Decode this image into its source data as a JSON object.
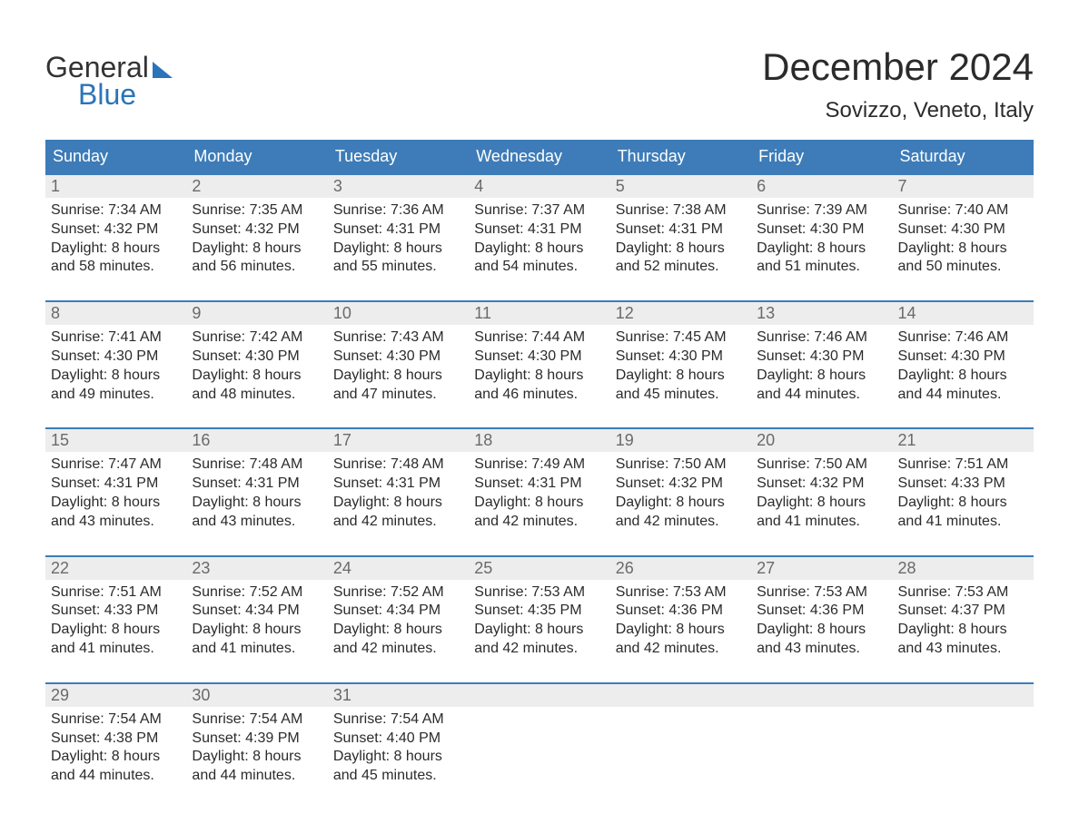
{
  "colors": {
    "brand_blue": "#3d7cb8",
    "logo_blue": "#2a74ba",
    "text_dark": "#2b2b2b",
    "daynum_gray": "#6a6a6a",
    "daynum_bg": "#ededed",
    "background": "#ffffff"
  },
  "typography": {
    "title_fontsize": 42,
    "subtitle_fontsize": 24,
    "dow_fontsize": 18,
    "daynum_fontsize": 18,
    "body_fontsize": 16,
    "logo_fontsize": 32,
    "font_family": "Arial"
  },
  "logo": {
    "top": "General",
    "bottom": "Blue"
  },
  "title": "December 2024",
  "subtitle": "Sovizzo, Veneto, Italy",
  "dow": [
    "Sunday",
    "Monday",
    "Tuesday",
    "Wednesday",
    "Thursday",
    "Friday",
    "Saturday"
  ],
  "calendar": {
    "type": "table",
    "columns": 7,
    "rows": 5,
    "row_separator_color": "#3d7cb8",
    "row_separator_width": 2
  },
  "weeks": [
    [
      {
        "n": "1",
        "sunrise": "Sunrise: 7:34 AM",
        "sunset": "Sunset: 4:32 PM",
        "d1": "Daylight: 8 hours",
        "d2": "and 58 minutes."
      },
      {
        "n": "2",
        "sunrise": "Sunrise: 7:35 AM",
        "sunset": "Sunset: 4:32 PM",
        "d1": "Daylight: 8 hours",
        "d2": "and 56 minutes."
      },
      {
        "n": "3",
        "sunrise": "Sunrise: 7:36 AM",
        "sunset": "Sunset: 4:31 PM",
        "d1": "Daylight: 8 hours",
        "d2": "and 55 minutes."
      },
      {
        "n": "4",
        "sunrise": "Sunrise: 7:37 AM",
        "sunset": "Sunset: 4:31 PM",
        "d1": "Daylight: 8 hours",
        "d2": "and 54 minutes."
      },
      {
        "n": "5",
        "sunrise": "Sunrise: 7:38 AM",
        "sunset": "Sunset: 4:31 PM",
        "d1": "Daylight: 8 hours",
        "d2": "and 52 minutes."
      },
      {
        "n": "6",
        "sunrise": "Sunrise: 7:39 AM",
        "sunset": "Sunset: 4:30 PM",
        "d1": "Daylight: 8 hours",
        "d2": "and 51 minutes."
      },
      {
        "n": "7",
        "sunrise": "Sunrise: 7:40 AM",
        "sunset": "Sunset: 4:30 PM",
        "d1": "Daylight: 8 hours",
        "d2": "and 50 minutes."
      }
    ],
    [
      {
        "n": "8",
        "sunrise": "Sunrise: 7:41 AM",
        "sunset": "Sunset: 4:30 PM",
        "d1": "Daylight: 8 hours",
        "d2": "and 49 minutes."
      },
      {
        "n": "9",
        "sunrise": "Sunrise: 7:42 AM",
        "sunset": "Sunset: 4:30 PM",
        "d1": "Daylight: 8 hours",
        "d2": "and 48 minutes."
      },
      {
        "n": "10",
        "sunrise": "Sunrise: 7:43 AM",
        "sunset": "Sunset: 4:30 PM",
        "d1": "Daylight: 8 hours",
        "d2": "and 47 minutes."
      },
      {
        "n": "11",
        "sunrise": "Sunrise: 7:44 AM",
        "sunset": "Sunset: 4:30 PM",
        "d1": "Daylight: 8 hours",
        "d2": "and 46 minutes."
      },
      {
        "n": "12",
        "sunrise": "Sunrise: 7:45 AM",
        "sunset": "Sunset: 4:30 PM",
        "d1": "Daylight: 8 hours",
        "d2": "and 45 minutes."
      },
      {
        "n": "13",
        "sunrise": "Sunrise: 7:46 AM",
        "sunset": "Sunset: 4:30 PM",
        "d1": "Daylight: 8 hours",
        "d2": "and 44 minutes."
      },
      {
        "n": "14",
        "sunrise": "Sunrise: 7:46 AM",
        "sunset": "Sunset: 4:30 PM",
        "d1": "Daylight: 8 hours",
        "d2": "and 44 minutes."
      }
    ],
    [
      {
        "n": "15",
        "sunrise": "Sunrise: 7:47 AM",
        "sunset": "Sunset: 4:31 PM",
        "d1": "Daylight: 8 hours",
        "d2": "and 43 minutes."
      },
      {
        "n": "16",
        "sunrise": "Sunrise: 7:48 AM",
        "sunset": "Sunset: 4:31 PM",
        "d1": "Daylight: 8 hours",
        "d2": "and 43 minutes."
      },
      {
        "n": "17",
        "sunrise": "Sunrise: 7:48 AM",
        "sunset": "Sunset: 4:31 PM",
        "d1": "Daylight: 8 hours",
        "d2": "and 42 minutes."
      },
      {
        "n": "18",
        "sunrise": "Sunrise: 7:49 AM",
        "sunset": "Sunset: 4:31 PM",
        "d1": "Daylight: 8 hours",
        "d2": "and 42 minutes."
      },
      {
        "n": "19",
        "sunrise": "Sunrise: 7:50 AM",
        "sunset": "Sunset: 4:32 PM",
        "d1": "Daylight: 8 hours",
        "d2": "and 42 minutes."
      },
      {
        "n": "20",
        "sunrise": "Sunrise: 7:50 AM",
        "sunset": "Sunset: 4:32 PM",
        "d1": "Daylight: 8 hours",
        "d2": "and 41 minutes."
      },
      {
        "n": "21",
        "sunrise": "Sunrise: 7:51 AM",
        "sunset": "Sunset: 4:33 PM",
        "d1": "Daylight: 8 hours",
        "d2": "and 41 minutes."
      }
    ],
    [
      {
        "n": "22",
        "sunrise": "Sunrise: 7:51 AM",
        "sunset": "Sunset: 4:33 PM",
        "d1": "Daylight: 8 hours",
        "d2": "and 41 minutes."
      },
      {
        "n": "23",
        "sunrise": "Sunrise: 7:52 AM",
        "sunset": "Sunset: 4:34 PM",
        "d1": "Daylight: 8 hours",
        "d2": "and 41 minutes."
      },
      {
        "n": "24",
        "sunrise": "Sunrise: 7:52 AM",
        "sunset": "Sunset: 4:34 PM",
        "d1": "Daylight: 8 hours",
        "d2": "and 42 minutes."
      },
      {
        "n": "25",
        "sunrise": "Sunrise: 7:53 AM",
        "sunset": "Sunset: 4:35 PM",
        "d1": "Daylight: 8 hours",
        "d2": "and 42 minutes."
      },
      {
        "n": "26",
        "sunrise": "Sunrise: 7:53 AM",
        "sunset": "Sunset: 4:36 PM",
        "d1": "Daylight: 8 hours",
        "d2": "and 42 minutes."
      },
      {
        "n": "27",
        "sunrise": "Sunrise: 7:53 AM",
        "sunset": "Sunset: 4:36 PM",
        "d1": "Daylight: 8 hours",
        "d2": "and 43 minutes."
      },
      {
        "n": "28",
        "sunrise": "Sunrise: 7:53 AM",
        "sunset": "Sunset: 4:37 PM",
        "d1": "Daylight: 8 hours",
        "d2": "and 43 minutes."
      }
    ],
    [
      {
        "n": "29",
        "sunrise": "Sunrise: 7:54 AM",
        "sunset": "Sunset: 4:38 PM",
        "d1": "Daylight: 8 hours",
        "d2": "and 44 minutes."
      },
      {
        "n": "30",
        "sunrise": "Sunrise: 7:54 AM",
        "sunset": "Sunset: 4:39 PM",
        "d1": "Daylight: 8 hours",
        "d2": "and 44 minutes."
      },
      {
        "n": "31",
        "sunrise": "Sunrise: 7:54 AM",
        "sunset": "Sunset: 4:40 PM",
        "d1": "Daylight: 8 hours",
        "d2": "and 45 minutes."
      },
      {
        "empty": true
      },
      {
        "empty": true
      },
      {
        "empty": true
      },
      {
        "empty": true
      }
    ]
  ]
}
